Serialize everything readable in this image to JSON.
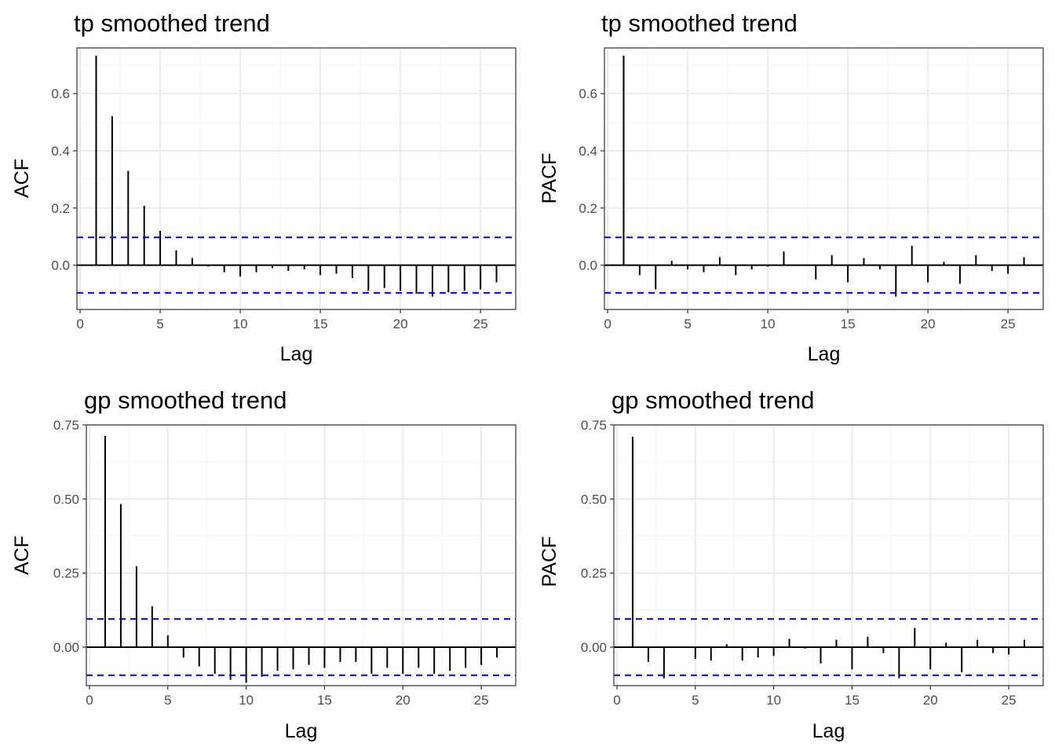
{
  "colors": {
    "bar": "#000000",
    "ci_line": "#0000ff",
    "grid_major": "#ebebeb",
    "grid_minor": "#f4f4f4",
    "panel_border": "#333333",
    "tick_label": "#4d4d4d",
    "title": "#000000"
  },
  "chart_data": [
    {
      "type": "bar",
      "subtype": "correlogram",
      "title": "tp smoothed trend",
      "xlabel": "Lag",
      "ylabel": "ACF",
      "xlim": [
        -0.2,
        27.2
      ],
      "ylim": [
        -0.155,
        0.76
      ],
      "xticks": [
        0,
        5,
        10,
        15,
        20,
        25
      ],
      "xtick_labels": [
        "0",
        "5",
        "10",
        "15",
        "20",
        "25"
      ],
      "yticks": [
        0,
        0.2,
        0.4,
        0.6
      ],
      "ytick_labels": [
        "0.0",
        "0.2",
        "0.4",
        "0.6"
      ],
      "ci": 0.097,
      "grid": true,
      "lags": [
        1,
        2,
        3,
        4,
        5,
        6,
        7,
        8,
        9,
        10,
        11,
        12,
        13,
        14,
        15,
        16,
        17,
        18,
        19,
        20,
        21,
        22,
        23,
        24,
        25,
        26
      ],
      "values": [
        0.733,
        0.521,
        0.33,
        0.208,
        0.12,
        0.052,
        0.025,
        -0.005,
        -0.025,
        -0.04,
        -0.025,
        -0.01,
        -0.02,
        -0.015,
        -0.035,
        -0.03,
        -0.045,
        -0.09,
        -0.08,
        -0.09,
        -0.1,
        -0.11,
        -0.095,
        -0.09,
        -0.085,
        -0.06
      ]
    },
    {
      "type": "bar",
      "subtype": "correlogram",
      "title": "tp smoothed trend",
      "xlabel": "Lag",
      "ylabel": "PACF",
      "xlim": [
        -0.2,
        27.2
      ],
      "ylim": [
        -0.155,
        0.76
      ],
      "xticks": [
        0,
        5,
        10,
        15,
        20,
        25
      ],
      "xtick_labels": [
        "0",
        "5",
        "10",
        "15",
        "20",
        "25"
      ],
      "yticks": [
        0,
        0.2,
        0.4,
        0.6
      ],
      "ytick_labels": [
        "0.0",
        "0.2",
        "0.4",
        "0.6"
      ],
      "ci": 0.097,
      "grid": true,
      "lags": [
        1,
        2,
        3,
        4,
        5,
        6,
        7,
        8,
        9,
        10,
        11,
        12,
        13,
        14,
        15,
        16,
        17,
        18,
        19,
        20,
        21,
        22,
        23,
        24,
        25,
        26
      ],
      "values": [
        0.733,
        -0.035,
        -0.085,
        0.015,
        -0.015,
        -0.025,
        0.028,
        -0.035,
        -0.015,
        -0.005,
        0.048,
        0.002,
        -0.05,
        0.035,
        -0.06,
        0.025,
        -0.015,
        -0.11,
        0.068,
        -0.06,
        0.012,
        -0.065,
        0.035,
        -0.02,
        -0.03,
        0.028
      ]
    },
    {
      "type": "bar",
      "subtype": "correlogram",
      "title": "gp smoothed trend",
      "xlabel": "Lag",
      "ylabel": "ACF",
      "xlim": [
        -0.2,
        27.2
      ],
      "ylim": [
        -0.13,
        0.75
      ],
      "xticks": [
        0,
        5,
        10,
        15,
        20,
        25
      ],
      "xtick_labels": [
        "0",
        "5",
        "10",
        "15",
        "20",
        "25"
      ],
      "yticks": [
        0,
        0.25,
        0.5,
        0.75
      ],
      "ytick_labels": [
        "0.00",
        "0.25",
        "0.50",
        "0.75"
      ],
      "ci": 0.095,
      "grid": true,
      "lags": [
        1,
        2,
        3,
        4,
        5,
        6,
        7,
        8,
        9,
        10,
        11,
        12,
        13,
        14,
        15,
        16,
        17,
        18,
        19,
        20,
        21,
        22,
        23,
        24,
        25,
        26
      ],
      "values": [
        0.713,
        0.483,
        0.273,
        0.138,
        0.04,
        -0.035,
        -0.065,
        -0.09,
        -0.11,
        -0.12,
        -0.1,
        -0.08,
        -0.075,
        -0.06,
        -0.07,
        -0.05,
        -0.05,
        -0.09,
        -0.07,
        -0.09,
        -0.07,
        -0.09,
        -0.08,
        -0.07,
        -0.06,
        -0.035
      ]
    },
    {
      "type": "bar",
      "subtype": "correlogram",
      "title": "gp smoothed trend",
      "xlabel": "Lag",
      "ylabel": "PACF",
      "xlim": [
        -0.2,
        27.2
      ],
      "ylim": [
        -0.13,
        0.75
      ],
      "xticks": [
        0,
        5,
        10,
        15,
        20,
        25
      ],
      "xtick_labels": [
        "0",
        "5",
        "10",
        "15",
        "20",
        "25"
      ],
      "yticks": [
        0,
        0.25,
        0.5,
        0.75
      ],
      "ytick_labels": [
        "0.00",
        "0.25",
        "0.50",
        "0.75"
      ],
      "ci": 0.095,
      "grid": true,
      "lags": [
        1,
        2,
        3,
        4,
        5,
        6,
        7,
        8,
        9,
        10,
        11,
        12,
        13,
        14,
        15,
        16,
        17,
        18,
        19,
        20,
        21,
        22,
        23,
        24,
        25,
        26
      ],
      "values": [
        0.71,
        -0.05,
        -0.105,
        0.0,
        -0.04,
        -0.045,
        0.01,
        -0.045,
        -0.035,
        -0.03,
        0.028,
        -0.005,
        -0.055,
        0.025,
        -0.075,
        0.035,
        -0.02,
        -0.105,
        0.065,
        -0.075,
        0.015,
        -0.085,
        0.025,
        -0.02,
        -0.025,
        0.025
      ]
    }
  ]
}
